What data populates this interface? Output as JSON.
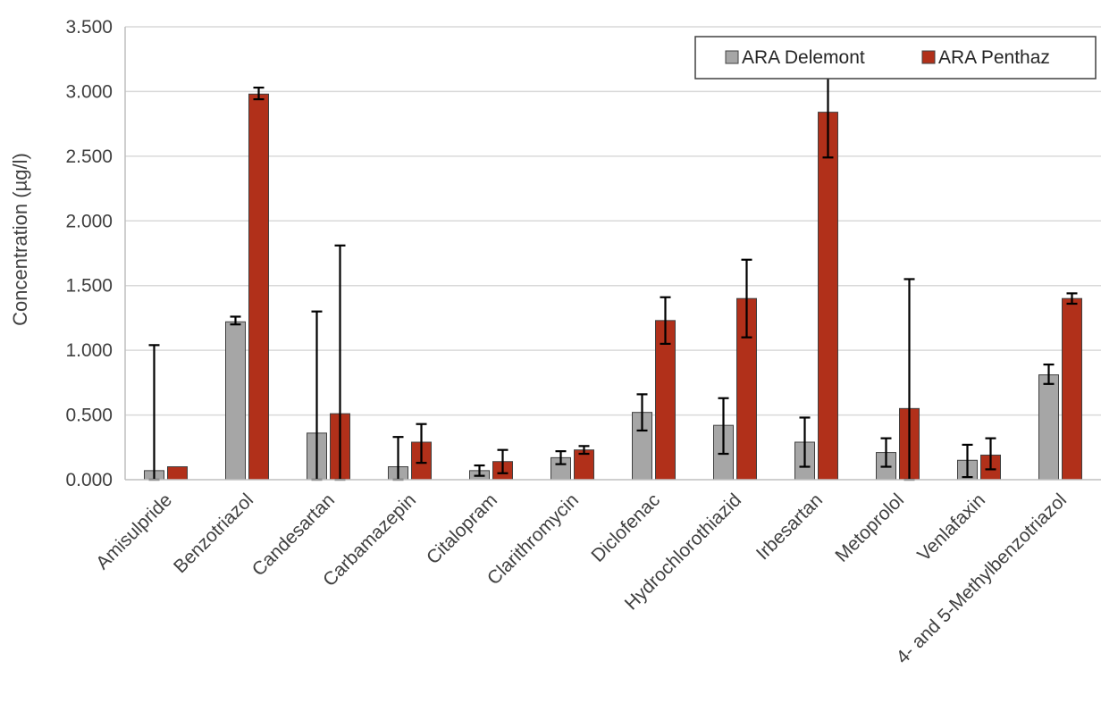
{
  "chart_data": {
    "type": "bar",
    "ylabel": "Concentration (µg/l)",
    "xlabel": "",
    "ylim": [
      0,
      3.5
    ],
    "yticks": [
      0,
      0.5,
      1.0,
      1.5,
      2.0,
      2.5,
      3.0,
      3.5
    ],
    "ytick_labels": [
      "0.000",
      "0.500",
      "1.000",
      "1.500",
      "2.000",
      "2.500",
      "3.000",
      "3.500"
    ],
    "grid": true,
    "legend_position": "top-right",
    "categories": [
      "Amisulpride",
      "Benzotriazol",
      "Candesartan",
      "Carbamazepin",
      "Citalopram",
      "Clarithromycin",
      "Diclofenac",
      "Hydrochlorothiazid",
      "Irbesartan",
      "Metoprolol",
      "Venlafaxin",
      "4- and 5-Methylbenzotriazol"
    ],
    "series": [
      {
        "name": "ARA Delemont",
        "color": "#a6a6a6",
        "values": [
          0.07,
          1.22,
          0.36,
          0.1,
          0.07,
          0.17,
          0.52,
          0.42,
          0.29,
          0.21,
          0.15,
          0.81
        ],
        "err_low": [
          0.0,
          1.2,
          0.0,
          0.0,
          0.03,
          0.12,
          0.38,
          0.2,
          0.1,
          0.1,
          0.02,
          0.74
        ],
        "err_high": [
          1.04,
          1.26,
          1.3,
          0.33,
          0.11,
          0.22,
          0.66,
          0.63,
          0.48,
          0.32,
          0.27,
          0.89
        ]
      },
      {
        "name": "ARA Penthaz",
        "color": "#b1301a",
        "values": [
          0.1,
          2.98,
          0.51,
          0.29,
          0.14,
          0.23,
          1.23,
          1.4,
          2.84,
          0.55,
          0.19,
          1.4
        ],
        "err_low": [
          0.1,
          2.94,
          0.0,
          0.13,
          0.05,
          0.2,
          1.05,
          1.1,
          2.49,
          0.0,
          0.08,
          1.36
        ],
        "err_high": [
          0.1,
          3.03,
          1.81,
          0.43,
          0.23,
          0.26,
          1.41,
          1.7,
          3.19,
          1.55,
          0.32,
          1.44
        ]
      }
    ]
  }
}
